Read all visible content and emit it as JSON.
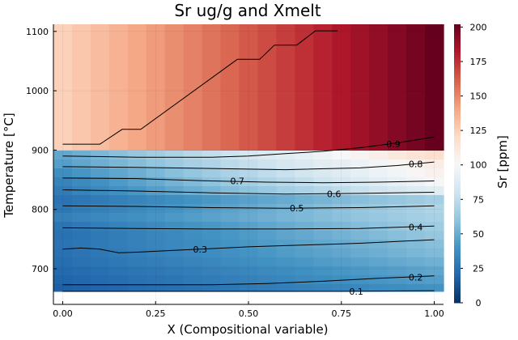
{
  "chart_data": {
    "type": "heatmap",
    "title": "Sr ug/g and Xmelt",
    "xlabel": "X (Compositional variable)",
    "ylabel": "Temperature [°C]",
    "colorbar_label": "Sr [ppm]",
    "xlim": [
      -0.025,
      1.025
    ],
    "ylim": [
      640,
      1112
    ],
    "x_ticks": [
      0.0,
      0.25,
      0.5,
      0.75,
      1.0
    ],
    "x_tick_labels": [
      "0.00",
      "0.25",
      "0.50",
      "0.75",
      "1.00"
    ],
    "y_ticks": [
      700,
      800,
      900,
      1000,
      1100
    ],
    "y_tick_labels": [
      "700",
      "800",
      "900",
      "1000",
      "1100"
    ],
    "colorbar_range": [
      0,
      202
    ],
    "colorbar_ticks": [
      0,
      25,
      50,
      75,
      100,
      125,
      150,
      175,
      200
    ],
    "colormap": "RdBu reversed",
    "grid": true,
    "heatmap": {
      "x": [
        0.0,
        0.05,
        0.1,
        0.15,
        0.2,
        0.25,
        0.3,
        0.35,
        0.4,
        0.45,
        0.5,
        0.55,
        0.6,
        0.65,
        0.7,
        0.75,
        0.8,
        0.85,
        0.9,
        0.95,
        1.0
      ],
      "y_bands": [
        [
          662,
          675
        ],
        [
          675,
          690
        ],
        [
          690,
          705
        ],
        [
          705,
          720
        ],
        [
          720,
          735
        ],
        [
          735,
          750
        ],
        [
          750,
          765
        ],
        [
          765,
          780
        ],
        [
          780,
          795
        ],
        [
          795,
          810
        ],
        [
          810,
          825
        ],
        [
          825,
          840
        ],
        [
          840,
          855
        ],
        [
          855,
          870
        ],
        [
          870,
          885
        ],
        [
          885,
          900
        ],
        [
          900,
          1112
        ]
      ],
      "band_start": [
        18,
        20,
        22,
        24,
        25,
        26,
        25,
        27,
        32,
        28,
        26,
        30,
        33,
        38,
        45,
        48,
        125
      ],
      "band_end": [
        40,
        45,
        48,
        52,
        56,
        58,
        62,
        65,
        68,
        70,
        66,
        90,
        100,
        105,
        108,
        118,
        202
      ]
    },
    "contour_levels": [
      0.1,
      0.2,
      0.3,
      0.4,
      0.5,
      0.6,
      0.7,
      0.8,
      0.9
    ],
    "contours": [
      {
        "level": "0.1",
        "x": [
          0.0,
          0.25,
          0.5,
          0.75,
          1.0
        ],
        "y": [
          662,
          662,
          662,
          662,
          663
        ]
      },
      {
        "level": "0.2",
        "x": [
          0.0,
          0.2,
          0.4,
          0.55,
          0.7,
          0.85,
          1.0
        ],
        "y": [
          673,
          673,
          673,
          675,
          679,
          684,
          688
        ]
      },
      {
        "level": "0.3",
        "x": [
          0.0,
          0.05,
          0.1,
          0.15,
          0.2,
          0.3,
          0.4,
          0.5,
          0.6,
          0.7,
          0.8,
          0.9,
          1.0
        ],
        "y": [
          733,
          735,
          733,
          727,
          728,
          731,
          734,
          737,
          739,
          741,
          743,
          746,
          749
        ]
      },
      {
        "level": "0.4",
        "x": [
          0.0,
          0.2,
          0.4,
          0.6,
          0.8,
          1.0
        ],
        "y": [
          769,
          768,
          767,
          767,
          768,
          772
        ]
      },
      {
        "level": "0.5",
        "x": [
          0.0,
          0.2,
          0.4,
          0.6,
          0.8,
          1.0
        ],
        "y": [
          806,
          805,
          803,
          802,
          803,
          806
        ]
      },
      {
        "level": "0.6",
        "x": [
          0.0,
          0.2,
          0.4,
          0.6,
          0.8,
          1.0
        ],
        "y": [
          833,
          831,
          828,
          826,
          827,
          829
        ]
      },
      {
        "level": "0.7",
        "x": [
          0.0,
          0.2,
          0.3,
          0.4,
          0.55,
          0.7,
          0.85,
          1.0
        ],
        "y": [
          853,
          852,
          850,
          848,
          846,
          845,
          846,
          848
        ]
      },
      {
        "level": "0.8",
        "x": [
          0.0,
          0.2,
          0.4,
          0.6,
          0.8,
          0.9,
          1.0
        ],
        "y": [
          872,
          871,
          869,
          867,
          870,
          874,
          880
        ]
      },
      {
        "level": "0.9",
        "x": [
          0.0,
          0.2,
          0.4,
          0.5,
          0.6,
          0.7,
          0.8,
          0.9,
          1.0
        ],
        "y": [
          890,
          888,
          888,
          890,
          894,
          898,
          904,
          912,
          922
        ]
      }
    ],
    "contour_label_positions": [
      {
        "text": "0.1",
        "x": 0.79,
        "y": 662
      },
      {
        "text": "0.2",
        "x": 0.95,
        "y": 686
      },
      {
        "text": "0.3",
        "x": 0.37,
        "y": 733
      },
      {
        "text": "0.4",
        "x": 0.95,
        "y": 770
      },
      {
        "text": "0.5",
        "x": 0.63,
        "y": 802
      },
      {
        "text": "0.6",
        "x": 0.73,
        "y": 826
      },
      {
        "text": "0.7",
        "x": 0.47,
        "y": 848
      },
      {
        "text": "0.8",
        "x": 0.95,
        "y": 877
      },
      {
        "text": "0.9",
        "x": 0.89,
        "y": 910
      }
    ],
    "liquidus_line": {
      "x": [
        0.0,
        0.1,
        0.16,
        0.21,
        0.47,
        0.53,
        0.57,
        0.63,
        0.68,
        0.74
      ],
      "y": [
        910,
        910,
        935,
        935,
        1053,
        1053,
        1077,
        1077,
        1101,
        1101
      ]
    }
  }
}
